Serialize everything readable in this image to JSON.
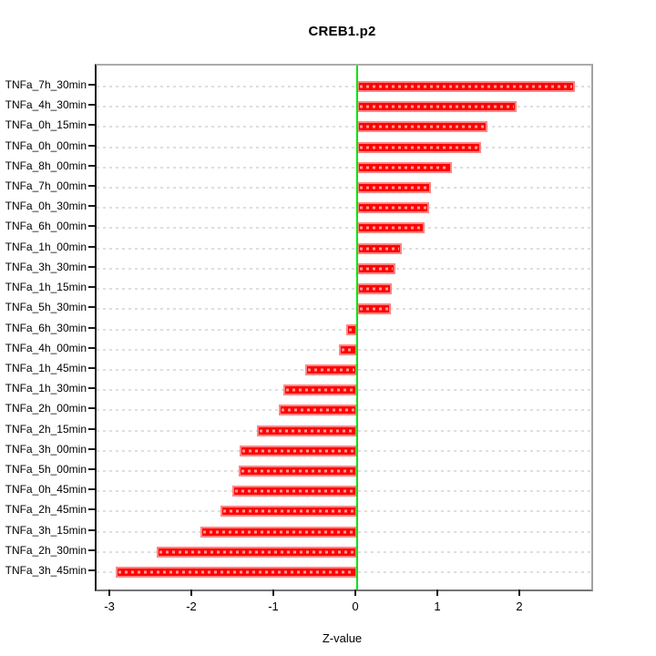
{
  "chart_data": {
    "type": "bar",
    "orientation": "horizontal",
    "title": "CREB1.p2",
    "xlabel": "Z-value",
    "ylabel": "",
    "legend": "none",
    "grid": "dotted-horizontal-per-category",
    "xlim": [
      -3.1778,
      2.8556
    ],
    "xticks": [
      -3,
      -2,
      -1,
      0,
      1,
      2
    ],
    "categories": [
      "TNFa_7h_30min",
      "TNFa_4h_30min",
      "TNFa_0h_15min",
      "TNFa_0h_00min",
      "TNFa_8h_00min",
      "TNFa_7h_00min",
      "TNFa_0h_30min",
      "TNFa_6h_00min",
      "TNFa_1h_00min",
      "TNFa_3h_30min",
      "TNFa_1h_15min",
      "TNFa_5h_30min",
      "TNFa_6h_30min",
      "TNFa_4h_00min",
      "TNFa_1h_45min",
      "TNFa_1h_30min",
      "TNFa_2h_00min",
      "TNFa_2h_15min",
      "TNFa_3h_00min",
      "TNFa_5h_00min",
      "TNFa_0h_45min",
      "TNFa_2h_45min",
      "TNFa_3h_15min",
      "TNFa_2h_30min",
      "TNFa_3h_45min"
    ],
    "values": [
      2.66,
      1.95,
      1.59,
      1.51,
      1.16,
      0.9,
      0.88,
      0.82,
      0.55,
      0.47,
      0.42,
      0.41,
      -0.13,
      -0.22,
      -0.63,
      -0.9,
      -0.96,
      -1.22,
      -1.43,
      -1.44,
      -1.52,
      -1.67,
      -1.91,
      -2.44,
      -2.94
    ],
    "colors": {
      "bar_fill": "#ff0000",
      "bar_border": "#ff8585",
      "bar_inner_dash": "rgba(255,255,255,0.6)",
      "gridline": "#dedede",
      "zero_line": "#00e400",
      "axis_text": "#000000"
    }
  }
}
